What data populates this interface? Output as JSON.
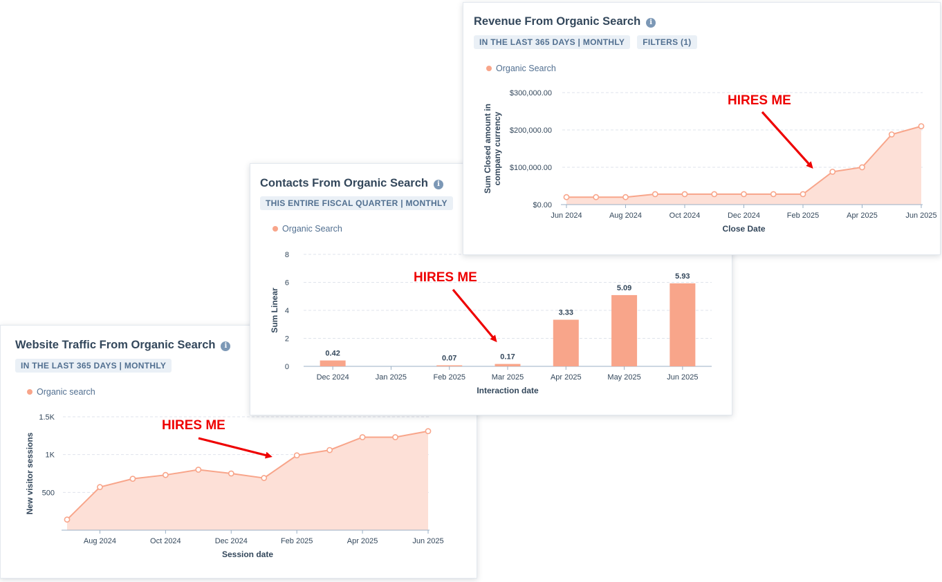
{
  "colors": {
    "series": "#f8a58a",
    "fill": "#fde0d7",
    "grid": "#dfe3eb",
    "annotation": "#ee0000"
  },
  "annotation_text": "HIRES ME",
  "cards": {
    "revenue": {
      "title": "Revenue From Organic Search",
      "pills": [
        "IN THE LAST 365 DAYS | MONTHLY",
        "FILTERS (1)"
      ],
      "legend": "Organic Search"
    },
    "contacts": {
      "title": "Contacts From Organic Search",
      "pills": [
        "THIS ENTIRE FISCAL QUARTER | MONTHLY"
      ],
      "legend": "Organic Search"
    },
    "traffic": {
      "title": "Website Traffic From Organic Search",
      "pills": [
        "IN THE LAST 365 DAYS | MONTHLY"
      ],
      "legend": "Organic search"
    }
  },
  "chart_data": [
    {
      "id": "revenue",
      "type": "area",
      "title": "Revenue From Organic Search",
      "xlabel": "Close Date",
      "ylabel": [
        "Sum Closed amount in",
        "company currency"
      ],
      "x": [
        "Jun 2024",
        "Jul 2024",
        "Aug 2024",
        "Sep 2024",
        "Oct 2024",
        "Nov 2024",
        "Dec 2024",
        "Jan 2025",
        "Feb 2025",
        "Mar 2025",
        "Apr 2025",
        "May 2025",
        "Jun 2025"
      ],
      "x_tick_labels": [
        "Jun 2024",
        "Aug 2024",
        "Oct 2024",
        "Dec 2024",
        "Feb 2025",
        "Apr 2025",
        "Jun 2025"
      ],
      "series": [
        {
          "name": "Organic Search",
          "values": [
            20000,
            20000,
            20000,
            28000,
            28000,
            28000,
            28000,
            28000,
            28000,
            88000,
            100000,
            188000,
            210000
          ]
        }
      ],
      "y_ticks": [
        0,
        100000,
        200000,
        300000
      ],
      "y_tick_labels": [
        "$0.00",
        "$100,000.00",
        "$200,000.00",
        "$300,000.00"
      ],
      "ylim": [
        0,
        300000
      ],
      "grid": true,
      "legend": "top-left"
    },
    {
      "id": "contacts",
      "type": "bar",
      "title": "Contacts From Organic Search",
      "xlabel": "Interaction date",
      "ylabel": "Sum Linear",
      "categories": [
        "Dec 2024",
        "Jan 2025",
        "Feb 2025",
        "Mar 2025",
        "Apr 2025",
        "May 2025",
        "Jun 2025"
      ],
      "series": [
        {
          "name": "Organic Search",
          "values": [
            0.42,
            0,
            0.07,
            0.17,
            3.33,
            5.09,
            5.93
          ]
        }
      ],
      "data_labels": [
        "0.42",
        "",
        "0.07",
        "0.17",
        "3.33",
        "5.09",
        "5.93"
      ],
      "y_ticks": [
        0,
        2,
        4,
        6,
        8
      ],
      "y_tick_labels": [
        "0",
        "2",
        "4",
        "6",
        "8"
      ],
      "ylim": [
        0,
        8
      ],
      "grid": true,
      "legend": "top-left"
    },
    {
      "id": "traffic",
      "type": "area",
      "title": "Website Traffic From Organic Search",
      "xlabel": "Session date",
      "ylabel": "New visitor sessions",
      "x": [
        "Jul 2024",
        "Aug 2024",
        "Sep 2024",
        "Oct 2024",
        "Nov 2024",
        "Dec 2024",
        "Jan 2025",
        "Feb 2025",
        "Mar 2025",
        "Apr 2025",
        "May 2025",
        "Jun 2025"
      ],
      "x_tick_labels": [
        "Aug 2024",
        "Oct 2024",
        "Dec 2024",
        "Feb 2025",
        "Apr 2025",
        "Jun 2025"
      ],
      "series": [
        {
          "name": "Organic search",
          "values": [
            140,
            570,
            680,
            730,
            800,
            750,
            690,
            990,
            1060,
            1230,
            1230,
            1310
          ]
        }
      ],
      "y_ticks": [
        500,
        1000,
        1500
      ],
      "y_tick_labels": [
        "500",
        "1K",
        "1.5K"
      ],
      "ylim": [
        0,
        1500
      ],
      "grid": true,
      "legend": "top-left"
    }
  ]
}
